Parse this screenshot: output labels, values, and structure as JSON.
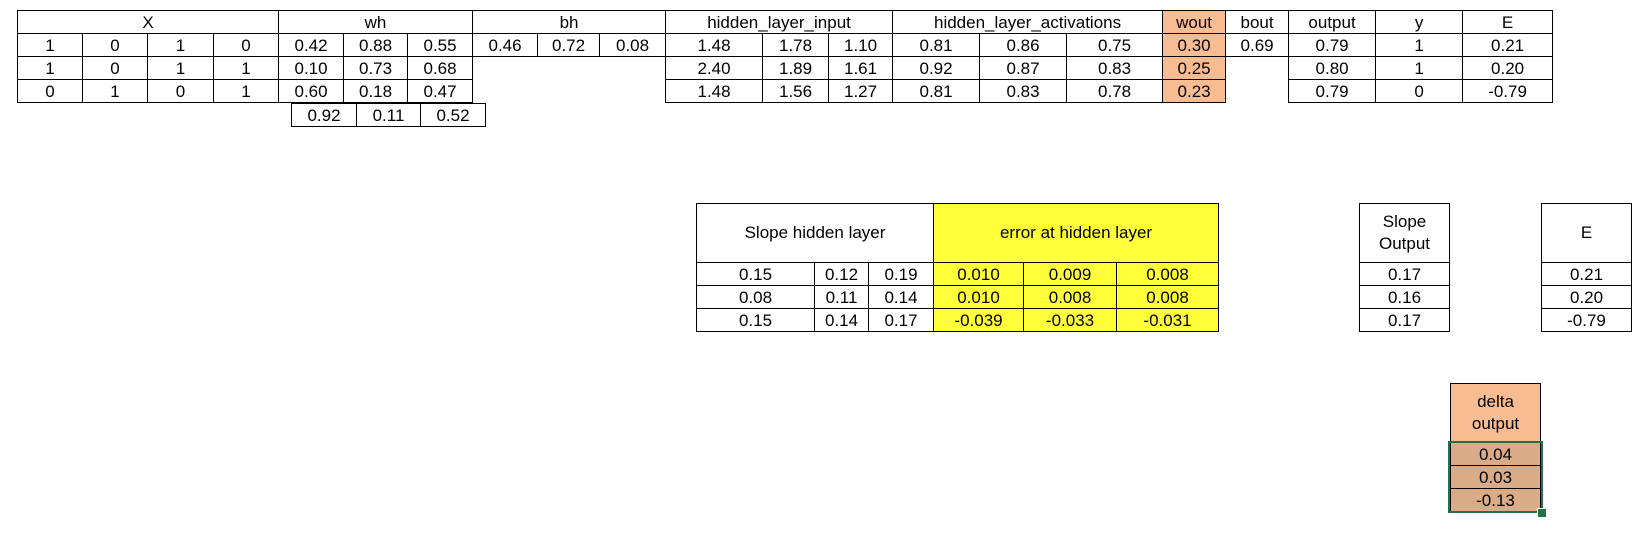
{
  "main_table": {
    "headers": {
      "x": "X",
      "wh": "wh",
      "bh": "bh",
      "hidden_layer_input": "hidden_layer_input",
      "hidden_layer_activations": "hidden_layer_activations",
      "wout": "wout",
      "bout": "bout",
      "output": "output",
      "y": "y",
      "e": "E"
    },
    "x": [
      [
        "1",
        "0",
        "1",
        "0"
      ],
      [
        "1",
        "0",
        "1",
        "1"
      ],
      [
        "0",
        "1",
        "0",
        "1"
      ]
    ],
    "wh": [
      [
        "0.42",
        "0.88",
        "0.55"
      ],
      [
        "0.10",
        "0.73",
        "0.68"
      ],
      [
        "0.60",
        "0.18",
        "0.47"
      ],
      [
        "0.92",
        "0.11",
        "0.52"
      ]
    ],
    "bh": [
      "0.46",
      "0.72",
      "0.08"
    ],
    "hidden_layer_input": [
      [
        "1.48",
        "1.78",
        "1.10"
      ],
      [
        "2.40",
        "1.89",
        "1.61"
      ],
      [
        "1.48",
        "1.56",
        "1.27"
      ]
    ],
    "hidden_layer_activations": [
      [
        "0.81",
        "0.86",
        "0.75"
      ],
      [
        "0.92",
        "0.87",
        "0.83"
      ],
      [
        "0.81",
        "0.83",
        "0.78"
      ]
    ],
    "wout": [
      "0.30",
      "0.25",
      "0.23"
    ],
    "bout": "0.69",
    "output": [
      "0.79",
      "0.80",
      "0.79"
    ],
    "y": [
      "1",
      "1",
      "0"
    ],
    "e": [
      "0.21",
      "0.20",
      "-0.79"
    ]
  },
  "hidden_error_table": {
    "slope_header": "Slope hidden layer",
    "error_header": "error at hidden layer",
    "slope": [
      [
        "0.15",
        "0.12",
        "0.19"
      ],
      [
        "0.08",
        "0.11",
        "0.14"
      ],
      [
        "0.15",
        "0.14",
        "0.17"
      ]
    ],
    "error": [
      [
        "0.010",
        "0.009",
        "0.008"
      ],
      [
        "0.010",
        "0.008",
        "0.008"
      ],
      [
        "-0.039",
        "-0.033",
        "-0.031"
      ]
    ]
  },
  "slope_output_table": {
    "header_line1": "Slope",
    "header_line2": "Output",
    "values": [
      "0.17",
      "0.16",
      "0.17"
    ]
  },
  "e_table": {
    "header": "E",
    "values": [
      "0.21",
      "0.20",
      "-0.79"
    ]
  },
  "delta_output_table": {
    "header_line1": "delta",
    "header_line2": "output",
    "values": [
      "0.04",
      "0.03",
      "-0.13"
    ]
  },
  "colors": {
    "wout_fill": "#f8bc93",
    "error_fill": "#ffff3a",
    "delta_fill": "#f8bc93",
    "selected_fill": "#d9ab86",
    "selection_border": "#217346"
  }
}
